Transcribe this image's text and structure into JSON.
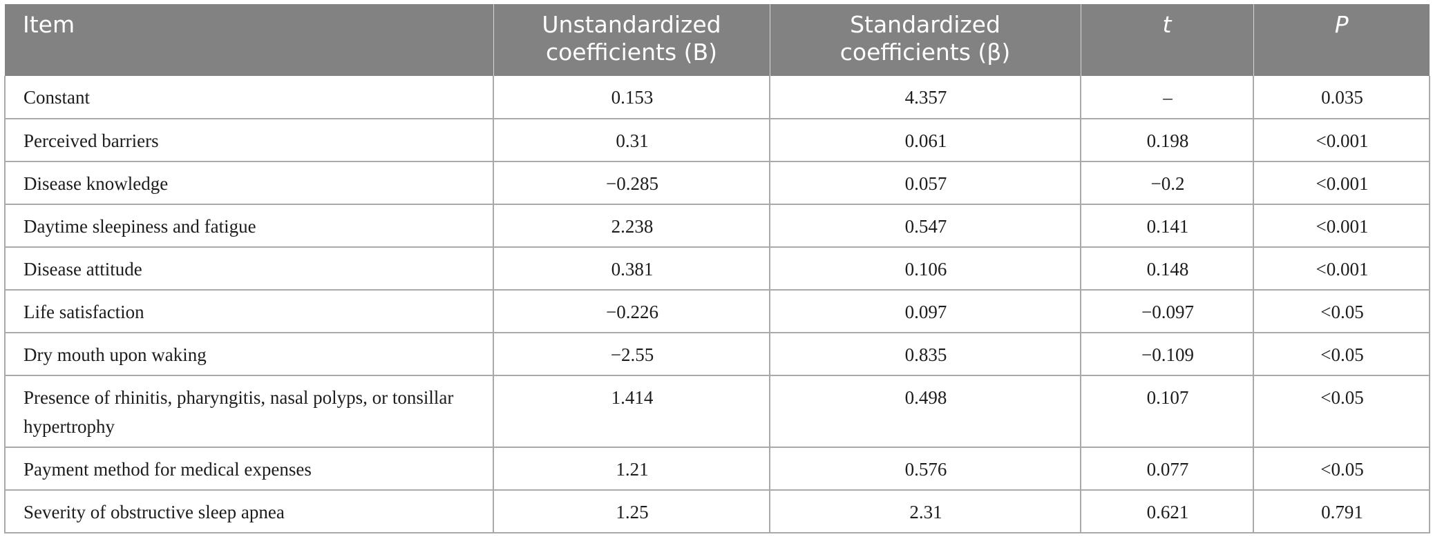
{
  "table": {
    "headers": [
      {
        "label": "Item"
      },
      {
        "label": "Unstandardized coefficients (B)"
      },
      {
        "label": "Standardized coefficients (β)"
      },
      {
        "label": "t"
      },
      {
        "label": "P"
      }
    ],
    "rows": [
      {
        "item": "Constant",
        "b": "0.153",
        "beta": "4.357",
        "t": "–",
        "p": "0.035"
      },
      {
        "item": "Perceived barriers",
        "b": "0.31",
        "beta": "0.061",
        "t": "0.198",
        "p": "<0.001"
      },
      {
        "item": "Disease knowledge",
        "b": "−0.285",
        "beta": "0.057",
        "t": "−0.2",
        "p": "<0.001"
      },
      {
        "item": "Daytime sleepiness and fatigue",
        "b": "2.238",
        "beta": "0.547",
        "t": "0.141",
        "p": "<0.001"
      },
      {
        "item": "Disease attitude",
        "b": "0.381",
        "beta": "0.106",
        "t": "0.148",
        "p": "<0.001"
      },
      {
        "item": "Life satisfaction",
        "b": "−0.226",
        "beta": "0.097",
        "t": "−0.097",
        "p": "<0.05"
      },
      {
        "item": "Dry mouth upon waking",
        "b": "−2.55",
        "beta": "0.835",
        "t": "−0.109",
        "p": "<0.05"
      },
      {
        "item": "Presence of rhinitis, pharyngitis, nasal polyps, or tonsillar hypertrophy",
        "b": "1.414",
        "beta": "0.498",
        "t": "0.107",
        "p": "<0.05"
      },
      {
        "item": "Payment method for medical expenses",
        "b": "1.21",
        "beta": "0.576",
        "t": "0.077",
        "p": "<0.05"
      },
      {
        "item": "Severity of obstructive sleep apnea",
        "b": "1.25",
        "beta": "2.31",
        "t": "0.621",
        "p": "0.791"
      }
    ]
  },
  "colors": {
    "header_bg": "#828282",
    "header_text": "#ffffff",
    "grid": "#a9a9a9",
    "body_text": "#1c1c1c"
  }
}
